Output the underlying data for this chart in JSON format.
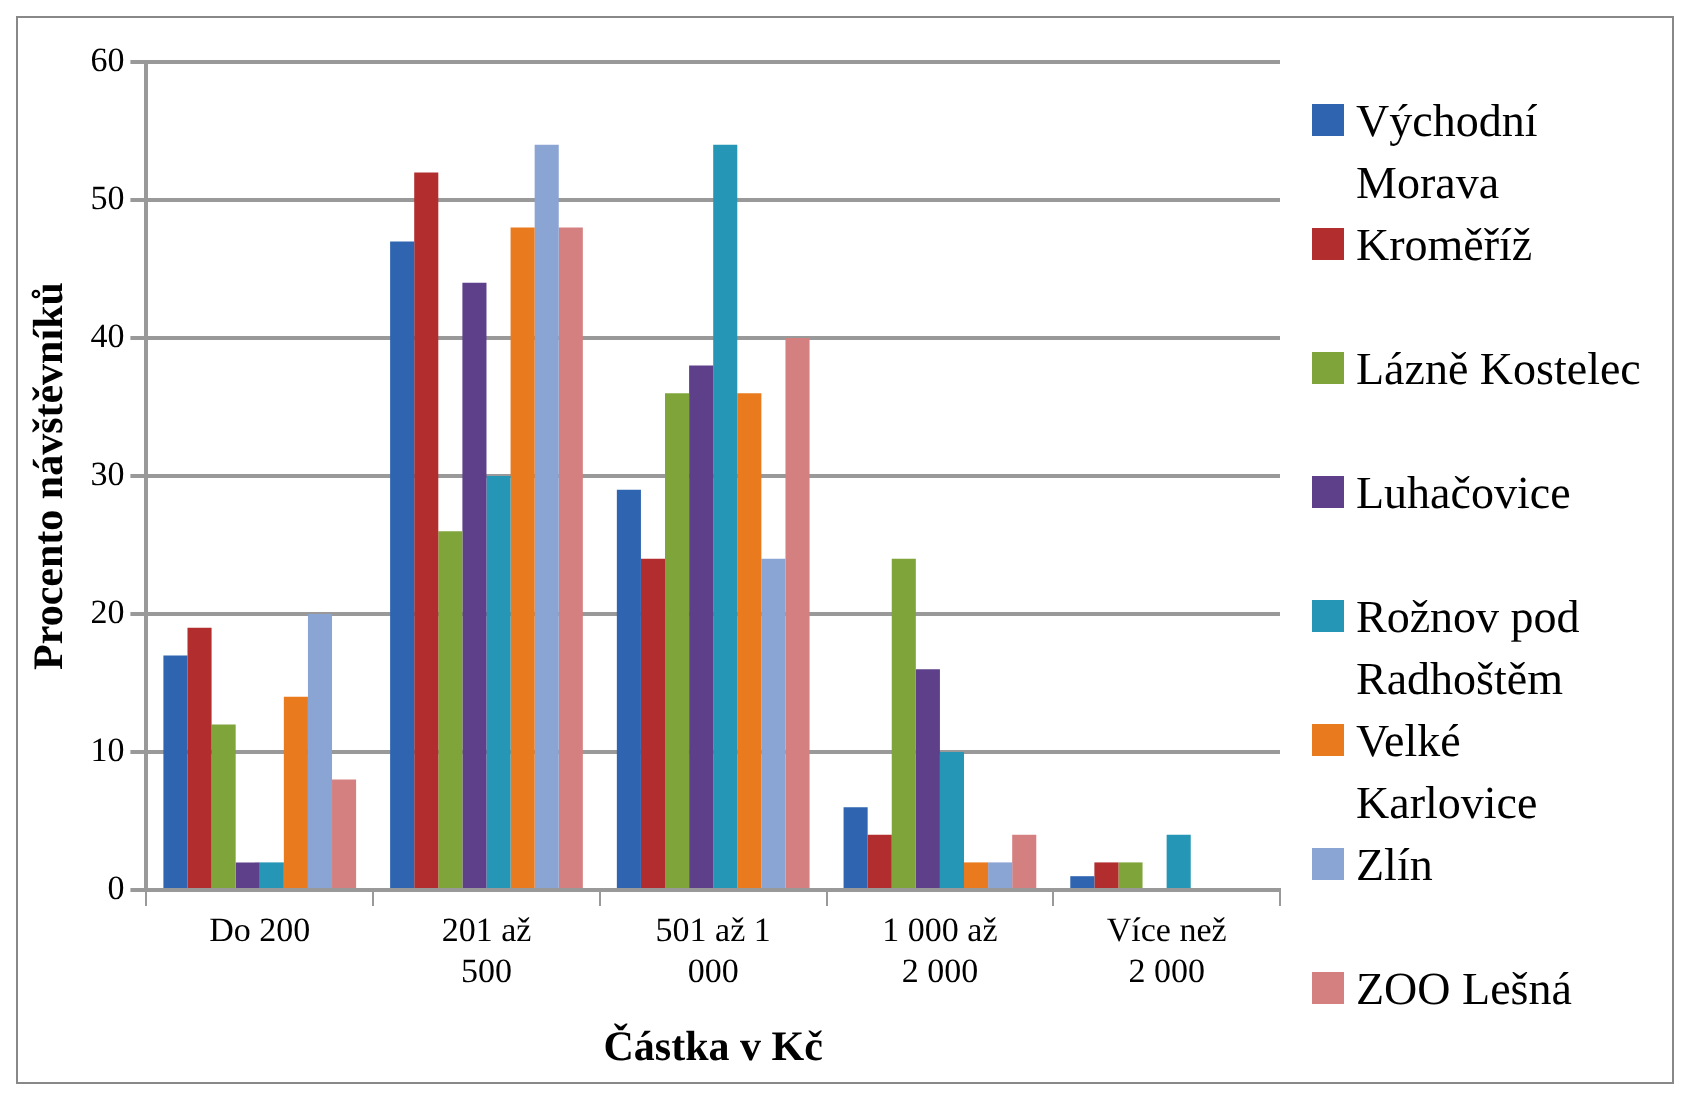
{
  "chart_data": {
    "type": "bar",
    "xlabel": "Částka v Kč",
    "ylabel": "Procento návštěvníků",
    "categories": [
      "Do 200",
      "201 až 500",
      "501 až 1 000",
      "1 000 až 2 000",
      "Více než 2 000"
    ],
    "series": [
      {
        "name": "Východní Morava",
        "color": "#2e64b0",
        "values": [
          17,
          47,
          29,
          6,
          1
        ]
      },
      {
        "name": "Kroměříž",
        "color": "#b22e2e",
        "values": [
          19,
          52,
          24,
          4,
          2
        ]
      },
      {
        "name": "Lázně Kostelec",
        "color": "#7fa43a",
        "values": [
          12,
          26,
          36,
          24,
          2
        ]
      },
      {
        "name": "Luhačovice",
        "color": "#5d3f8a",
        "values": [
          2,
          44,
          38,
          16,
          0
        ]
      },
      {
        "name": "Rožnov pod Radhoštěm",
        "color": "#2596b5",
        "values": [
          2,
          30,
          54,
          10,
          4
        ]
      },
      {
        "name": "Velké Karlovice",
        "color": "#e97a1e",
        "values": [
          14,
          48,
          36,
          2,
          0
        ]
      },
      {
        "name": "Zlín",
        "color": "#8aa5d3",
        "values": [
          20,
          54,
          24,
          2,
          0
        ]
      },
      {
        "name": "ZOO Lešná",
        "color": "#d58080",
        "values": [
          8,
          48,
          40,
          4,
          0
        ]
      }
    ],
    "ylim": [
      0,
      60
    ],
    "yticks": [
      0,
      10,
      20,
      30,
      40,
      50,
      60
    ],
    "grid": "y",
    "legend": "right"
  }
}
